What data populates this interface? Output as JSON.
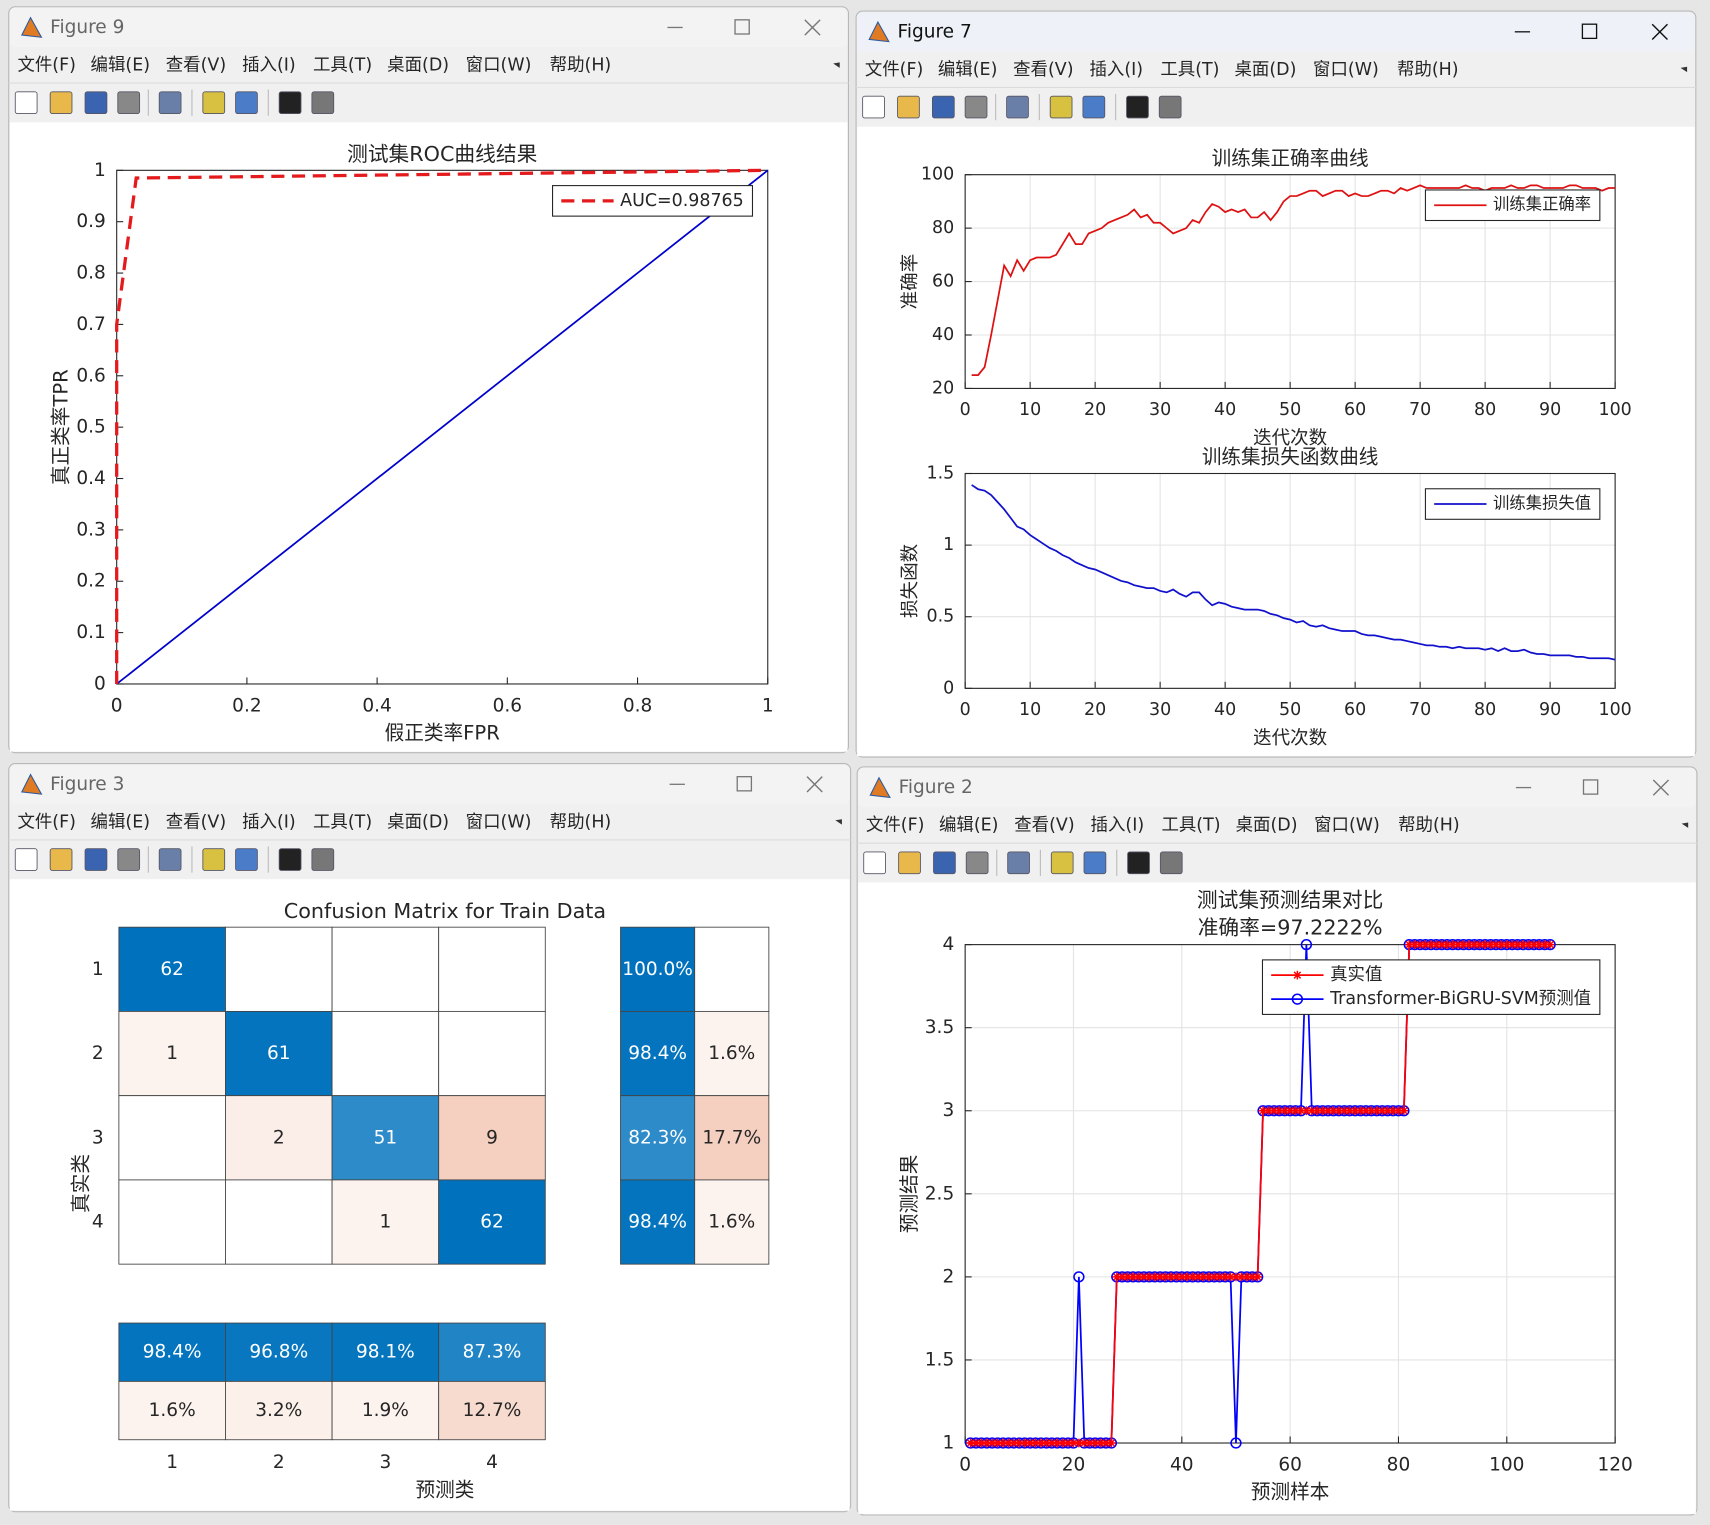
{
  "menu": [
    "文件(F)",
    "编辑(E)",
    "查看(V)",
    "插入(I)",
    "工具(T)",
    "桌面(D)",
    "窗口(W)",
    "帮助(H)"
  ],
  "windows": [
    {
      "title": "Figure 9",
      "chart_data": {
        "type": "line",
        "title": "测试集ROC曲线结果",
        "xlabel": "假正类率FPR",
        "ylabel": "真正类率TPR",
        "xlim": [
          0,
          1
        ],
        "xticks": [
          0,
          0.2,
          0.4,
          0.6,
          0.8,
          1
        ],
        "ylim": [
          0,
          1
        ],
        "yticks": [
          0,
          0.1,
          0.2,
          0.3,
          0.4,
          0.5,
          0.6,
          0.7,
          0.8,
          0.9,
          1
        ],
        "grid": false,
        "legend": "northeast",
        "series": [
          {
            "name": "AUC=0.98765",
            "color": "#e41a1c",
            "line_style": "dashed",
            "x": [
              0,
              0,
              0.03,
              1
            ],
            "values": [
              0,
              0.7,
              0.985,
              1
            ]
          },
          {
            "color": "#0000cc",
            "x": [
              0,
              1
            ],
            "values": [
              0,
              1
            ]
          }
        ]
      }
    },
    {
      "title": "Figure 7",
      "chart_data": [
        {
          "type": "line",
          "title": "训练集正确率曲线",
          "xlabel": "迭代次数",
          "ylabel": "准确率",
          "xlim": [
            0,
            100
          ],
          "xticks": [
            0,
            10,
            20,
            30,
            40,
            50,
            60,
            70,
            80,
            90,
            100
          ],
          "ylim": [
            20,
            100
          ],
          "yticks": [
            20,
            40,
            60,
            80,
            100
          ],
          "grid": true,
          "legend": "northeast",
          "x": [
            1,
            2,
            3,
            4,
            5,
            6,
            7,
            8,
            9,
            10,
            11,
            12,
            13,
            14,
            15,
            16,
            17,
            18,
            19,
            20,
            21,
            22,
            23,
            24,
            25,
            26,
            27,
            28,
            29,
            30,
            31,
            32,
            33,
            34,
            35,
            36,
            37,
            38,
            39,
            40,
            41,
            42,
            43,
            44,
            45,
            46,
            47,
            48,
            49,
            50,
            51,
            52,
            53,
            54,
            55,
            56,
            57,
            58,
            59,
            60,
            61,
            62,
            63,
            64,
            65,
            66,
            67,
            68,
            69,
            70,
            71,
            72,
            73,
            74,
            75,
            76,
            77,
            78,
            79,
            80,
            81,
            82,
            83,
            84,
            85,
            86,
            87,
            88,
            89,
            90,
            91,
            92,
            93,
            94,
            95,
            96,
            97,
            98,
            99,
            100
          ],
          "series": [
            {
              "name": "训练集正确率",
              "color": "#dd1111",
              "values": [
                25,
                25,
                28,
                40,
                53,
                66,
                62,
                68,
                64,
                68,
                69,
                69,
                69,
                70,
                74,
                78,
                74,
                74,
                78,
                79,
                80,
                82,
                83,
                84,
                85,
                87,
                84,
                85,
                82,
                82,
                80,
                78,
                79,
                80,
                83,
                82,
                86,
                89,
                88,
                86,
                87,
                86,
                87,
                84,
                84,
                86,
                83,
                86,
                90,
                92,
                92,
                93,
                94,
                94,
                92,
                93,
                94,
                94,
                92,
                93,
                92,
                92,
                93,
                94,
                94,
                93,
                95,
                94,
                95,
                96,
                95,
                95,
                95,
                95,
                95,
                95,
                96,
                95,
                95,
                94,
                95,
                95,
                95,
                96,
                95,
                95,
                96,
                96,
                95,
                95,
                95,
                95,
                96,
                96,
                95,
                95,
                95,
                94,
                95,
                95
              ]
            }
          ]
        },
        {
          "type": "line",
          "title": "训练集损失函数曲线",
          "xlabel": "迭代次数",
          "ylabel": "损失函数",
          "xlim": [
            0,
            100
          ],
          "xticks": [
            0,
            10,
            20,
            30,
            40,
            50,
            60,
            70,
            80,
            90,
            100
          ],
          "ylim": [
            0,
            1.5
          ],
          "yticks": [
            0,
            0.5,
            1,
            1.5
          ],
          "grid": true,
          "legend": "northeast",
          "x": [
            1,
            2,
            3,
            4,
            5,
            6,
            7,
            8,
            9,
            10,
            11,
            12,
            13,
            14,
            15,
            16,
            17,
            18,
            19,
            20,
            21,
            22,
            23,
            24,
            25,
            26,
            27,
            28,
            29,
            30,
            31,
            32,
            33,
            34,
            35,
            36,
            37,
            38,
            39,
            40,
            41,
            42,
            43,
            44,
            45,
            46,
            47,
            48,
            49,
            50,
            51,
            52,
            53,
            54,
            55,
            56,
            57,
            58,
            59,
            60,
            61,
            62,
            63,
            64,
            65,
            66,
            67,
            68,
            69,
            70,
            71,
            72,
            73,
            74,
            75,
            76,
            77,
            78,
            79,
            80,
            81,
            82,
            83,
            84,
            85,
            86,
            87,
            88,
            89,
            90,
            91,
            92,
            93,
            94,
            95,
            96,
            97,
            98,
            99,
            100
          ],
          "series": [
            {
              "name": "训练集损失值",
              "color": "#1111cc",
              "values": [
                1.42,
                1.39,
                1.38,
                1.35,
                1.3,
                1.25,
                1.19,
                1.13,
                1.11,
                1.07,
                1.04,
                1.01,
                0.98,
                0.96,
                0.93,
                0.91,
                0.88,
                0.86,
                0.84,
                0.83,
                0.81,
                0.79,
                0.77,
                0.75,
                0.74,
                0.72,
                0.71,
                0.7,
                0.7,
                0.68,
                0.67,
                0.69,
                0.66,
                0.64,
                0.67,
                0.67,
                0.62,
                0.58,
                0.6,
                0.59,
                0.57,
                0.56,
                0.55,
                0.55,
                0.55,
                0.54,
                0.52,
                0.51,
                0.49,
                0.48,
                0.46,
                0.47,
                0.44,
                0.43,
                0.44,
                0.42,
                0.41,
                0.4,
                0.4,
                0.4,
                0.38,
                0.37,
                0.37,
                0.36,
                0.35,
                0.34,
                0.34,
                0.33,
                0.32,
                0.31,
                0.3,
                0.3,
                0.29,
                0.29,
                0.28,
                0.29,
                0.28,
                0.28,
                0.28,
                0.27,
                0.28,
                0.26,
                0.28,
                0.26,
                0.26,
                0.27,
                0.25,
                0.24,
                0.24,
                0.23,
                0.23,
                0.23,
                0.23,
                0.22,
                0.22,
                0.21,
                0.21,
                0.21,
                0.21,
                0.2
              ]
            }
          ]
        }
      ]
    },
    {
      "title": "Figure 3",
      "chart_data": {
        "type": "confusion",
        "title": "Confusion Matrix for Train Data",
        "xlabel": "预测类",
        "ylabel": "真实类",
        "categories": [
          "1",
          "2",
          "3",
          "4"
        ],
        "matrix": [
          [
            62,
            null,
            null,
            null
          ],
          [
            1,
            61,
            null,
            null
          ],
          [
            null,
            2,
            51,
            9
          ],
          [
            null,
            null,
            1,
            62
          ]
        ],
        "row_summary": {
          "values": [
            [
              100.0,
              null
            ],
            [
              98.4,
              1.6
            ],
            [
              82.3,
              17.7
            ],
            [
              98.4,
              1.6
            ]
          ],
          "value_labels": [
            [
              "100.0%",
              null
            ],
            [
              "98.4%",
              "1.6%"
            ],
            [
              "82.3%",
              "17.7%"
            ],
            [
              "98.4%",
              "1.6%"
            ]
          ]
        },
        "column_summary": {
          "values": [
            [
              98.4,
              96.8,
              98.1,
              87.3
            ],
            [
              1.6,
              3.2,
              1.9,
              12.7
            ]
          ],
          "value_labels": [
            [
              "98.4%",
              "96.8%",
              "98.1%",
              "87.3%"
            ],
            [
              "1.6%",
              "3.2%",
              "1.9%",
              "12.7%"
            ]
          ]
        },
        "colors": {
          "correct": "#0072bd",
          "incorrect": "#d95319"
        }
      }
    },
    {
      "title": "Figure 2",
      "chart_data": {
        "type": "line",
        "title": "测试集预测结果对比",
        "subtitle": "准确率=97.2222%",
        "xlabel": "预测样本",
        "ylabel": "预测结果",
        "xlim": [
          0,
          120
        ],
        "xticks": [
          0,
          20,
          40,
          60,
          80,
          100,
          120
        ],
        "ylim": [
          1,
          4
        ],
        "yticks": [
          1,
          1.5,
          2,
          2.5,
          3,
          3.5,
          4
        ],
        "grid": true,
        "legend": "northeast",
        "x": [
          1,
          2,
          3,
          4,
          5,
          6,
          7,
          8,
          9,
          10,
          11,
          12,
          13,
          14,
          15,
          16,
          17,
          18,
          19,
          20,
          21,
          22,
          23,
          24,
          25,
          26,
          27,
          28,
          29,
          30,
          31,
          32,
          33,
          34,
          35,
          36,
          37,
          38,
          39,
          40,
          41,
          42,
          43,
          44,
          45,
          46,
          47,
          48,
          49,
          50,
          51,
          52,
          53,
          54,
          55,
          56,
          57,
          58,
          59,
          60,
          61,
          62,
          63,
          64,
          65,
          66,
          67,
          68,
          69,
          70,
          71,
          72,
          73,
          74,
          75,
          76,
          77,
          78,
          79,
          80,
          81,
          82,
          83,
          84,
          85,
          86,
          87,
          88,
          89,
          90,
          91,
          92,
          93,
          94,
          95,
          96,
          97,
          98,
          99,
          100,
          101,
          102,
          103,
          104,
          105,
          106,
          107,
          108
        ],
        "series": [
          {
            "name": "真实值",
            "color": "#ff0000",
            "marker": "*",
            "values": [
              1,
              1,
              1,
              1,
              1,
              1,
              1,
              1,
              1,
              1,
              1,
              1,
              1,
              1,
              1,
              1,
              1,
              1,
              1,
              1,
              1,
              1,
              1,
              1,
              1,
              1,
              1,
              2,
              2,
              2,
              2,
              2,
              2,
              2,
              2,
              2,
              2,
              2,
              2,
              2,
              2,
              2,
              2,
              2,
              2,
              2,
              2,
              2,
              2,
              2,
              2,
              2,
              2,
              2,
              3,
              3,
              3,
              3,
              3,
              3,
              3,
              3,
              3,
              3,
              3,
              3,
              3,
              3,
              3,
              3,
              3,
              3,
              3,
              3,
              3,
              3,
              3,
              3,
              3,
              3,
              3,
              4,
              4,
              4,
              4,
              4,
              4,
              4,
              4,
              4,
              4,
              4,
              4,
              4,
              4,
              4,
              4,
              4,
              4,
              4,
              4,
              4,
              4,
              4,
              4,
              4,
              4,
              4
            ]
          },
          {
            "name": "Transformer-BiGRU-SVM预测值",
            "color": "#0000ff",
            "marker": "o",
            "values": [
              1,
              1,
              1,
              1,
              1,
              1,
              1,
              1,
              1,
              1,
              1,
              1,
              1,
              1,
              1,
              1,
              1,
              1,
              1,
              1,
              2,
              1,
              1,
              1,
              1,
              1,
              1,
              2,
              2,
              2,
              2,
              2,
              2,
              2,
              2,
              2,
              2,
              2,
              2,
              2,
              2,
              2,
              2,
              2,
              2,
              2,
              2,
              2,
              2,
              1,
              2,
              2,
              2,
              2,
              3,
              3,
              3,
              3,
              3,
              3,
              3,
              3,
              4,
              3,
              3,
              3,
              3,
              3,
              3,
              3,
              3,
              3,
              3,
              3,
              3,
              3,
              3,
              3,
              3,
              3,
              3,
              4,
              4,
              4,
              4,
              4,
              4,
              4,
              4,
              4,
              4,
              4,
              4,
              4,
              4,
              4,
              4,
              4,
              4,
              4,
              4,
              4,
              4,
              4,
              4,
              4,
              4,
              4
            ]
          }
        ]
      }
    }
  ]
}
